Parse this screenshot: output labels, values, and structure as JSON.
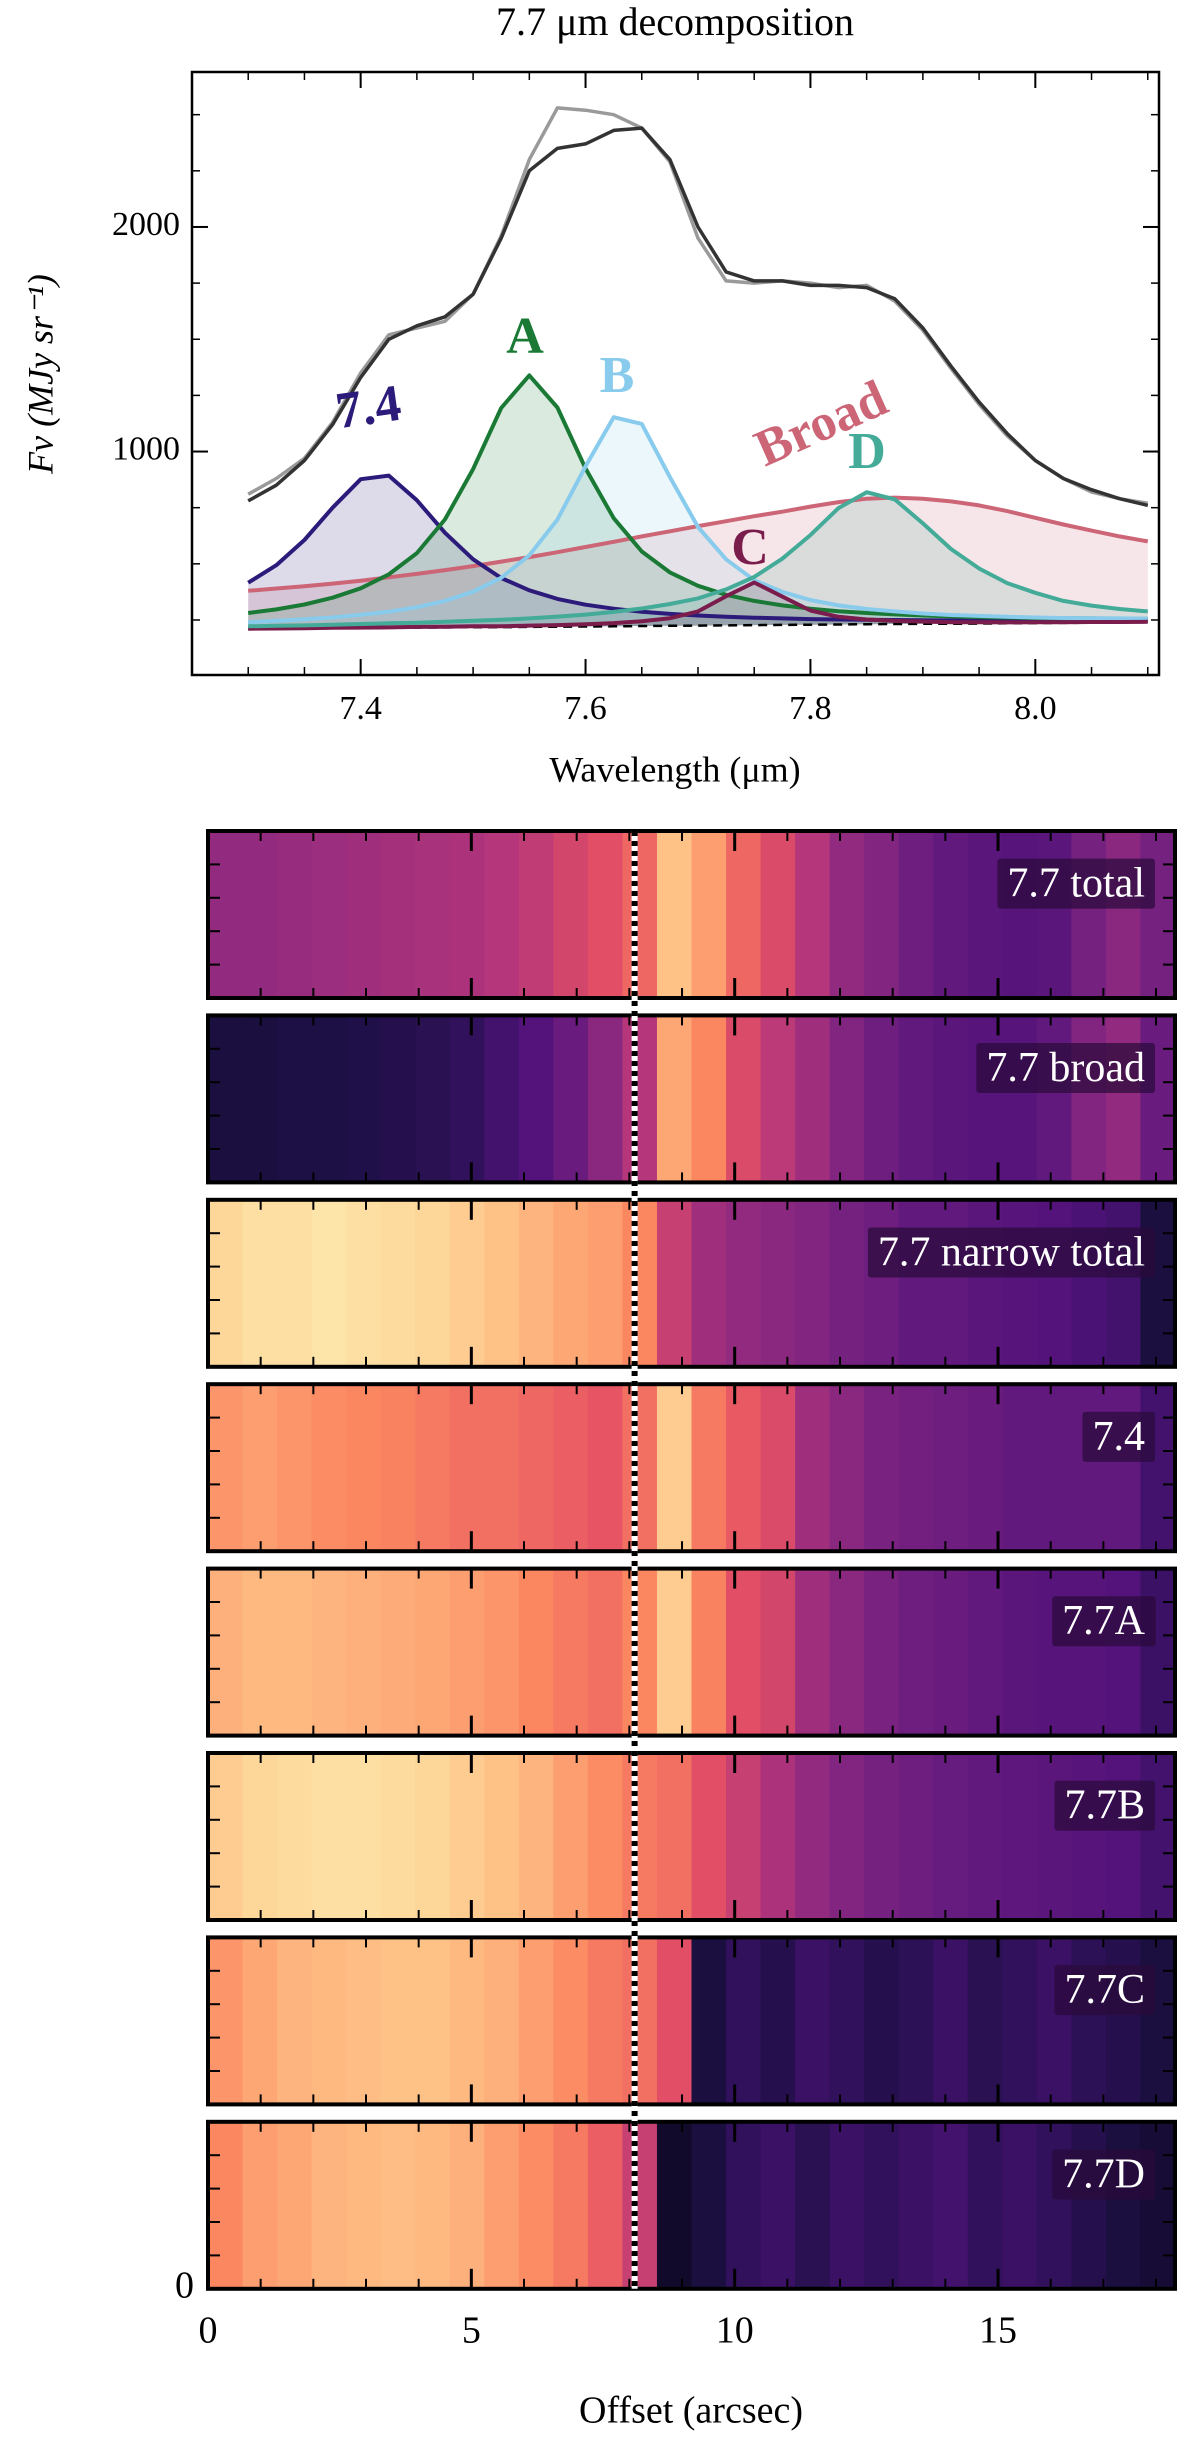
{
  "chart_data": [
    {
      "type": "line",
      "title": "7.7 μm decomposition",
      "xlabel": "Wavelength (μm)",
      "ylabel": "Fν (MJy sr⁻¹)",
      "x": [
        7.3,
        7.325,
        7.35,
        7.375,
        7.4,
        7.425,
        7.45,
        7.475,
        7.5,
        7.525,
        7.55,
        7.575,
        7.6,
        7.625,
        7.65,
        7.675,
        7.7,
        7.725,
        7.75,
        7.775,
        7.8,
        7.825,
        7.85,
        7.875,
        7.9,
        7.925,
        7.95,
        7.975,
        8.0,
        8.025,
        8.05,
        8.075,
        8.1
      ],
      "xlim": [
        7.25,
        8.11
      ],
      "ylim": [
        5,
        2690
      ],
      "xticks": [
        7.4,
        7.6,
        7.8,
        {
          "value": 8.0,
          "label": "8.0"
        }
      ],
      "yticks": [
        1000,
        2000
      ],
      "baseline": {
        "color": "#000000",
        "values": [
          210,
          211,
          212,
          213,
          214,
          215,
          216,
          217,
          218,
          218,
          219,
          220,
          221,
          222,
          223,
          224,
          225,
          226,
          227,
          228,
          229,
          230,
          231,
          232,
          233,
          233,
          234,
          235,
          236,
          237,
          238,
          239,
          240
        ]
      },
      "series": [
        {
          "name": "Broad",
          "color": "#cc6677",
          "fill": true,
          "values": [
            380,
            390,
            400,
            412,
            425,
            440,
            455,
            472,
            490,
            510,
            530,
            552,
            575,
            598,
            622,
            645,
            668,
            690,
            712,
            732,
            755,
            775,
            790,
            795,
            790,
            778,
            760,
            735,
            705,
            675,
            648,
            622,
            600
          ]
        },
        {
          "name": "7.4",
          "color": "#2c1b7a",
          "fill": true,
          "values": [
            416,
            494,
            606,
            750,
            877,
            893,
            783,
            638,
            520,
            437,
            382,
            344,
            318,
            300,
            287,
            277,
            270,
            264,
            260,
            257,
            254,
            252,
            251,
            250,
            249,
            248,
            247,
            247,
            247,
            247,
            247,
            248,
            248
          ]
        },
        {
          "name": "A",
          "color": "#1a7a35",
          "fill": true,
          "values": [
            281,
            297,
            319,
            349,
            391,
            453,
            548,
            698,
            922,
            1194,
            1339,
            1196,
            925,
            703,
            555,
            462,
            402,
            362,
            335,
            315,
            300,
            289,
            281,
            275,
            270,
            266,
            263,
            261,
            259,
            258,
            257,
            256,
            255
          ]
        },
        {
          "name": "B",
          "color": "#88cbec",
          "fill": true,
          "values": [
            240,
            246,
            253,
            261,
            273,
            287,
            307,
            335,
            376,
            438,
            538,
            697,
            934,
            1153,
            1123,
            886,
            664,
            520,
            427,
            375,
            339,
            315,
            299,
            288,
            279,
            272,
            268,
            264,
            261,
            259,
            258,
            257,
            256
          ]
        },
        {
          "name": "C",
          "color": "#7a1d4d",
          "fill": true,
          "values": [
            211,
            212,
            213,
            215,
            216,
            217,
            219,
            220,
            222,
            222,
            225,
            227,
            231,
            236,
            244,
            258,
            288,
            356,
            417,
            354,
            292,
            264,
            252,
            246,
            243,
            240,
            240,
            239,
            240,
            240,
            241,
            241,
            242
          ]
        },
        {
          "name": "D",
          "color": "#44ab99",
          "fill": true,
          "values": [
            222,
            224,
            226,
            229,
            232,
            235,
            238,
            242,
            247,
            251,
            257,
            265,
            274,
            286,
            301,
            321,
            346,
            386,
            442,
            523,
            628,
            748,
            819,
            787,
            680,
            566,
            479,
            414,
            371,
            335,
            314,
            299,
            288
          ]
        },
        {
          "color": "#9a9a9a",
          "values": [
            810,
            880,
            970,
            1130,
            1350,
            1520,
            1550,
            1580,
            1700,
            1960,
            2300,
            2530,
            2520,
            2500,
            2440,
            2290,
            1950,
            1760,
            1750,
            1760,
            1750,
            1730,
            1740,
            1670,
            1540,
            1370,
            1210,
            1070,
            960,
            880,
            820,
            790,
            770
          ]
        },
        {
          "color": "#333333",
          "values": [
            780,
            850,
            960,
            1120,
            1330,
            1500,
            1560,
            1600,
            1700,
            1950,
            2250,
            2350,
            2370,
            2430,
            2440,
            2300,
            2000,
            1800,
            1760,
            1760,
            1740,
            1740,
            1730,
            1680,
            1550,
            1380,
            1220,
            1080,
            960,
            880,
            830,
            790,
            760
          ]
        }
      ]
    },
    {
      "type": "heatmap",
      "xlabel": "Offset (arcsec)",
      "xlim": [
        0,
        18.36
      ],
      "xticks": [
        0,
        5,
        10,
        15
      ],
      "yticks": [
        0
      ],
      "divider_x": 8.1,
      "colormap": "magma",
      "clim": [
        0,
        1
      ],
      "panels": [
        {
          "label": "7.7 total",
          "values": [
            0.42,
            0.42,
            0.43,
            0.44,
            0.45,
            0.46,
            0.47,
            0.48,
            0.5,
            0.53,
            0.58,
            0.62,
            0.68,
            0.88,
            0.8,
            0.68,
            0.6,
            0.5,
            0.42,
            0.38,
            0.33,
            0.3,
            0.28,
            0.27,
            0.28,
            0.35,
            0.4,
            0.35
          ]
        },
        {
          "label": "7.7 broad",
          "values": [
            0.12,
            0.12,
            0.13,
            0.13,
            0.14,
            0.15,
            0.16,
            0.18,
            0.22,
            0.26,
            0.32,
            0.4,
            0.5,
            0.82,
            0.75,
            0.6,
            0.52,
            0.45,
            0.38,
            0.33,
            0.3,
            0.28,
            0.27,
            0.27,
            0.3,
            0.38,
            0.42,
            0.32
          ]
        },
        {
          "label": "7.7 narrow total",
          "values": [
            0.92,
            0.94,
            0.94,
            0.95,
            0.94,
            0.93,
            0.92,
            0.9,
            0.88,
            0.85,
            0.82,
            0.8,
            0.75,
            0.55,
            0.45,
            0.42,
            0.4,
            0.38,
            0.35,
            0.33,
            0.3,
            0.3,
            0.28,
            0.27,
            0.26,
            0.24,
            0.22,
            0.12
          ]
        },
        {
          "label": "7.4",
          "values": [
            0.78,
            0.8,
            0.78,
            0.76,
            0.75,
            0.74,
            0.72,
            0.7,
            0.7,
            0.68,
            0.66,
            0.64,
            0.7,
            0.9,
            0.72,
            0.65,
            0.6,
            0.45,
            0.4,
            0.36,
            0.34,
            0.33,
            0.32,
            0.3,
            0.3,
            0.3,
            0.3,
            0.22
          ]
        },
        {
          "label": "7.7A",
          "values": [
            0.84,
            0.86,
            0.86,
            0.85,
            0.84,
            0.83,
            0.82,
            0.8,
            0.78,
            0.75,
            0.72,
            0.7,
            0.75,
            0.9,
            0.74,
            0.62,
            0.58,
            0.45,
            0.4,
            0.36,
            0.33,
            0.32,
            0.3,
            0.28,
            0.27,
            0.27,
            0.26,
            0.2
          ]
        },
        {
          "label": "7.7B",
          "values": [
            0.9,
            0.92,
            0.93,
            0.94,
            0.94,
            0.93,
            0.92,
            0.9,
            0.88,
            0.85,
            0.8,
            0.76,
            0.72,
            0.7,
            0.62,
            0.55,
            0.48,
            0.42,
            0.38,
            0.35,
            0.33,
            0.31,
            0.3,
            0.29,
            0.28,
            0.27,
            0.26,
            0.22
          ]
        },
        {
          "label": "7.7C",
          "values": [
            0.78,
            0.82,
            0.85,
            0.86,
            0.87,
            0.88,
            0.88,
            0.86,
            0.84,
            0.8,
            0.76,
            0.72,
            0.7,
            0.62,
            0.12,
            0.18,
            0.15,
            0.2,
            0.18,
            0.15,
            0.17,
            0.2,
            0.16,
            0.18,
            0.2,
            0.17,
            0.15,
            0.12
          ]
        },
        {
          "label": "7.7D",
          "values": [
            0.75,
            0.8,
            0.82,
            0.85,
            0.86,
            0.87,
            0.86,
            0.84,
            0.8,
            0.76,
            0.72,
            0.66,
            0.55,
            0.08,
            0.12,
            0.18,
            0.2,
            0.16,
            0.2,
            0.18,
            0.2,
            0.22,
            0.18,
            0.2,
            0.18,
            0.15,
            0.12,
            0.1
          ]
        }
      ]
    }
  ]
}
